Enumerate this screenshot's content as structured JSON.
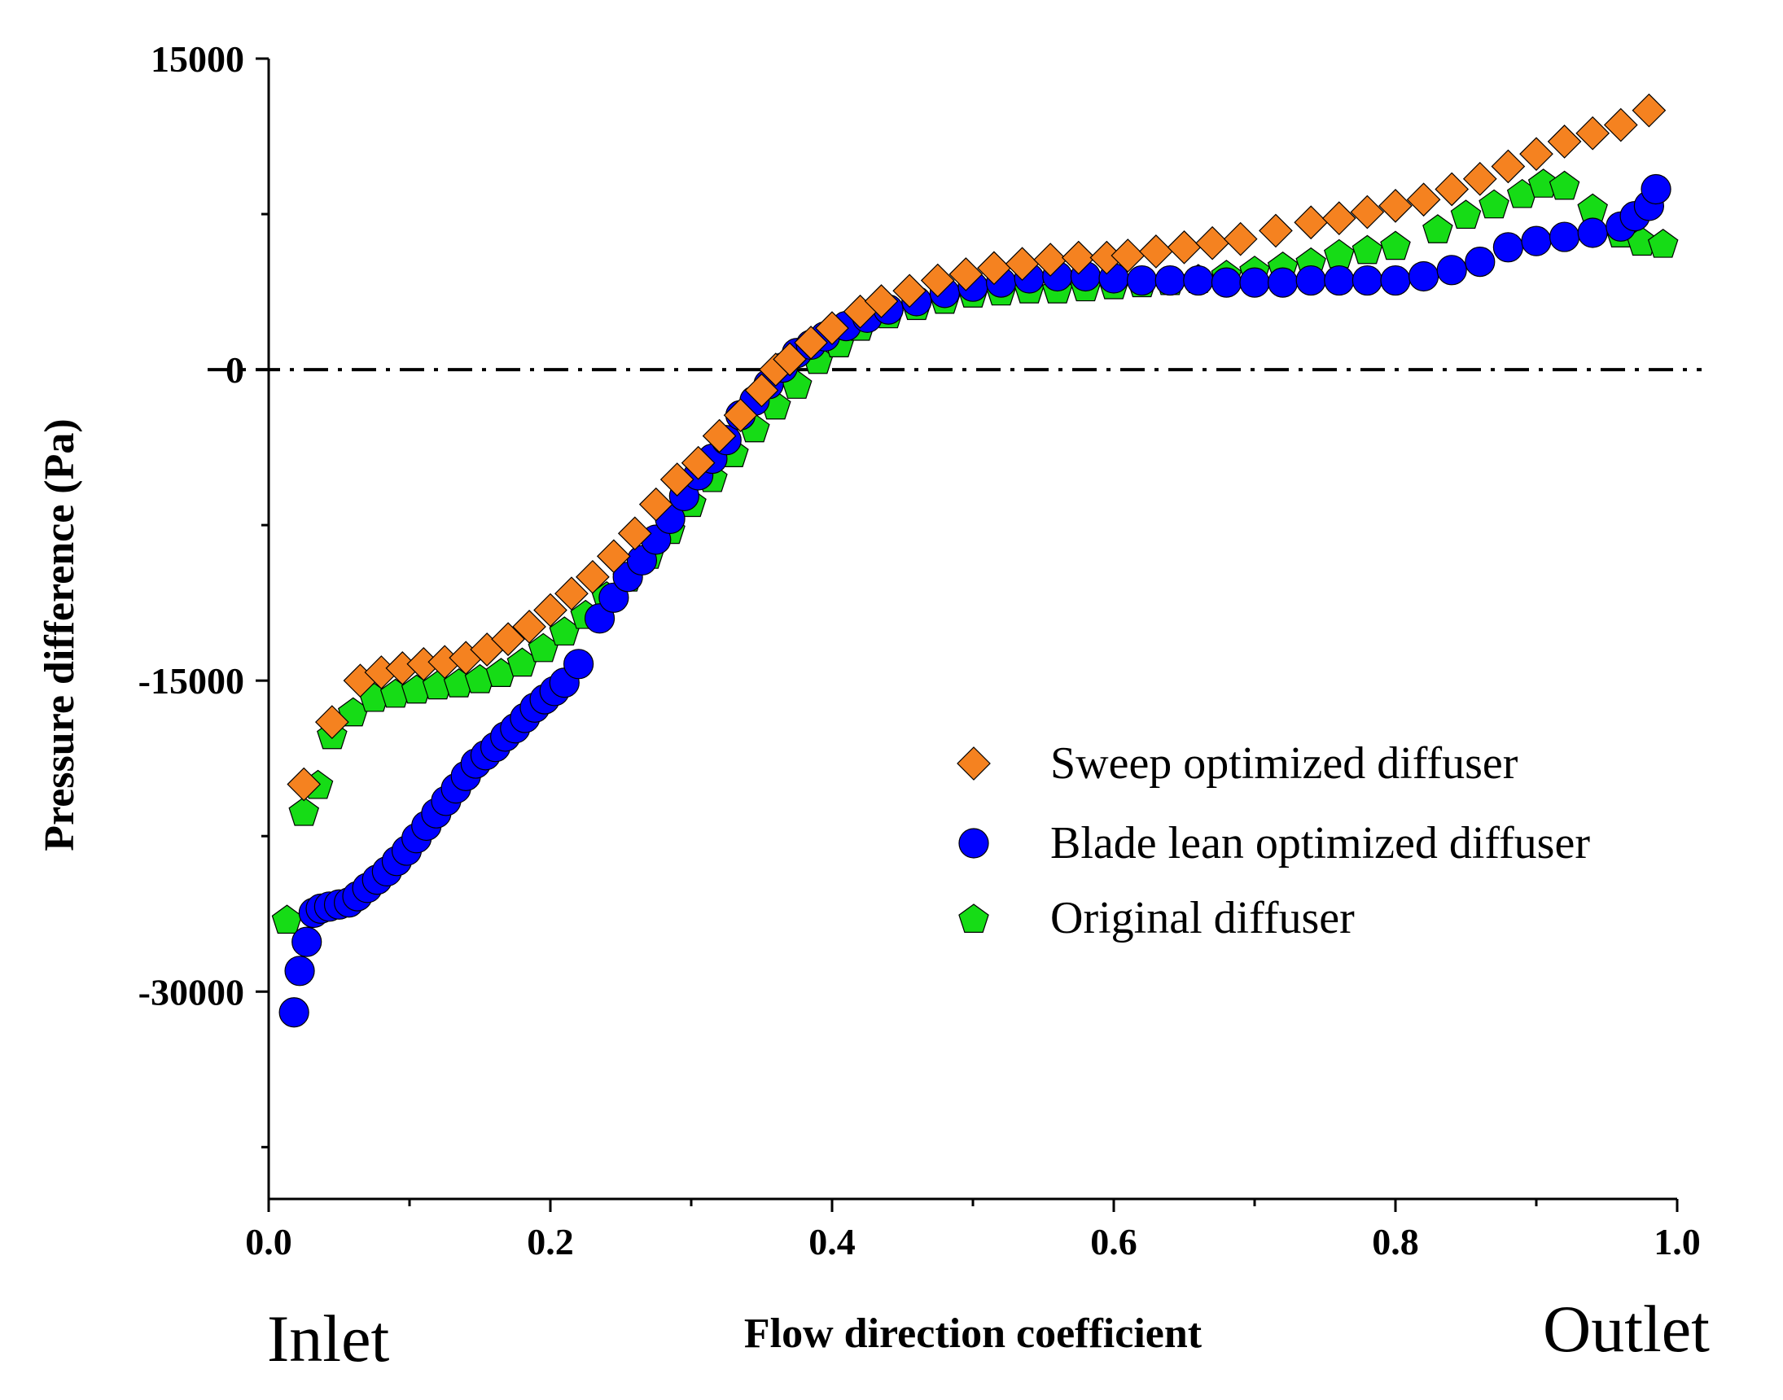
{
  "chart_data": {
    "type": "scatter",
    "xlabel": "Flow direction coefficient",
    "ylabel": "Pressure difference (Pa)",
    "xlim": [
      0.0,
      1.0
    ],
    "ylim": [
      -40000,
      15000
    ],
    "xticks": [
      "0.0",
      "0.2",
      "0.4",
      "0.6",
      "0.8",
      "1.0"
    ],
    "yticks": [
      "15000",
      "0",
      "-15000",
      "-30000"
    ],
    "start_label": "Inlet",
    "end_label": "Outlet",
    "reference_line": {
      "y": 0,
      "style": "dash-dot"
    },
    "grid": false,
    "legend_position": "center-right",
    "series": [
      {
        "name": "Sweep optimized diffuser",
        "marker": "diamond",
        "color": "#f58220",
        "x": [
          0.025,
          0.045,
          0.065,
          0.08,
          0.095,
          0.11,
          0.125,
          0.14,
          0.155,
          0.17,
          0.185,
          0.2,
          0.215,
          0.23,
          0.245,
          0.26,
          0.275,
          0.29,
          0.305,
          0.32,
          0.335,
          0.35,
          0.36,
          0.37,
          0.385,
          0.4,
          0.42,
          0.435,
          0.455,
          0.475,
          0.495,
          0.515,
          0.535,
          0.555,
          0.575,
          0.595,
          0.61,
          0.63,
          0.65,
          0.67,
          0.69,
          0.715,
          0.74,
          0.76,
          0.78,
          0.8,
          0.82,
          0.84,
          0.86,
          0.88,
          0.9,
          0.92,
          0.94,
          0.96,
          0.98
        ],
        "y": [
          -20000,
          -17000,
          -15000,
          -14600,
          -14400,
          -14200,
          -14100,
          -13900,
          -13500,
          -13000,
          -12400,
          -11600,
          -10800,
          -10000,
          -9000,
          -7900,
          -6500,
          -5300,
          -4500,
          -3200,
          -2200,
          -1000,
          0,
          500,
          1300,
          2000,
          2800,
          3300,
          3800,
          4300,
          4600,
          4900,
          5100,
          5300,
          5400,
          5400,
          5500,
          5700,
          5900,
          6100,
          6300,
          6700,
          7100,
          7300,
          7600,
          7900,
          8200,
          8700,
          9200,
          9800,
          10400,
          11000,
          11400,
          11800,
          12500
        ]
      },
      {
        "name": "Blade lean optimized diffuser",
        "marker": "circle",
        "color": "#0000ff",
        "x": [
          0.018,
          0.022,
          0.027,
          0.032,
          0.037,
          0.043,
          0.05,
          0.057,
          0.063,
          0.07,
          0.077,
          0.084,
          0.091,
          0.098,
          0.105,
          0.112,
          0.119,
          0.126,
          0.133,
          0.14,
          0.147,
          0.154,
          0.161,
          0.168,
          0.175,
          0.182,
          0.189,
          0.196,
          0.203,
          0.21,
          0.22,
          0.235,
          0.245,
          0.255,
          0.265,
          0.275,
          0.285,
          0.295,
          0.305,
          0.315,
          0.325,
          0.335,
          0.345,
          0.355,
          0.365,
          0.375,
          0.385,
          0.395,
          0.41,
          0.425,
          0.44,
          0.46,
          0.48,
          0.5,
          0.52,
          0.54,
          0.56,
          0.58,
          0.6,
          0.62,
          0.64,
          0.66,
          0.68,
          0.7,
          0.72,
          0.74,
          0.76,
          0.78,
          0.8,
          0.82,
          0.84,
          0.86,
          0.88,
          0.9,
          0.92,
          0.94,
          0.96,
          0.97,
          0.98,
          0.985
        ],
        "y": [
          -31000,
          -29000,
          -27600,
          -26200,
          -26000,
          -25900,
          -25800,
          -25700,
          -25400,
          -25000,
          -24600,
          -24200,
          -23700,
          -23200,
          -22600,
          -22000,
          -21400,
          -20800,
          -20200,
          -19600,
          -19000,
          -18600,
          -18200,
          -17700,
          -17300,
          -16800,
          -16300,
          -15900,
          -15500,
          -15100,
          -14200,
          -12000,
          -11000,
          -10000,
          -9200,
          -8200,
          -7200,
          -6100,
          -5100,
          -4300,
          -3400,
          -2200,
          -1500,
          -700,
          100,
          800,
          1200,
          1600,
          2100,
          2500,
          2900,
          3300,
          3700,
          4000,
          4200,
          4400,
          4500,
          4500,
          4400,
          4300,
          4300,
          4300,
          4200,
          4200,
          4200,
          4300,
          4300,
          4300,
          4300,
          4500,
          4800,
          5200,
          5900,
          6200,
          6400,
          6600,
          6900,
          7400,
          7900,
          8700
        ]
      },
      {
        "name": "Original diffuser",
        "marker": "pentagon",
        "color": "#16dc16",
        "x": [
          0.013,
          0.025,
          0.035,
          0.045,
          0.06,
          0.075,
          0.09,
          0.105,
          0.12,
          0.135,
          0.15,
          0.165,
          0.18,
          0.195,
          0.21,
          0.225,
          0.24,
          0.255,
          0.27,
          0.285,
          0.3,
          0.315,
          0.33,
          0.345,
          0.36,
          0.375,
          0.39,
          0.405,
          0.42,
          0.44,
          0.46,
          0.48,
          0.5,
          0.52,
          0.54,
          0.56,
          0.58,
          0.6,
          0.62,
          0.64,
          0.66,
          0.68,
          0.7,
          0.72,
          0.74,
          0.76,
          0.78,
          0.8,
          0.83,
          0.85,
          0.87,
          0.89,
          0.905,
          0.92,
          0.94,
          0.96,
          0.975,
          0.99
        ],
        "y": [
          -26500,
          -21300,
          -20000,
          -17600,
          -16500,
          -15800,
          -15600,
          -15400,
          -15200,
          -15100,
          -14900,
          -14600,
          -14100,
          -13400,
          -12600,
          -11800,
          -10900,
          -10000,
          -8900,
          -7700,
          -6400,
          -5200,
          -4000,
          -2800,
          -1700,
          -700,
          500,
          1300,
          2100,
          2700,
          3100,
          3400,
          3700,
          3800,
          3900,
          3900,
          4000,
          4100,
          4200,
          4300,
          4400,
          4600,
          4800,
          5000,
          5200,
          5600,
          5800,
          6000,
          6800,
          7500,
          8000,
          8500,
          9000,
          8900,
          7800,
          6600,
          6200,
          6100
        ]
      }
    ]
  }
}
